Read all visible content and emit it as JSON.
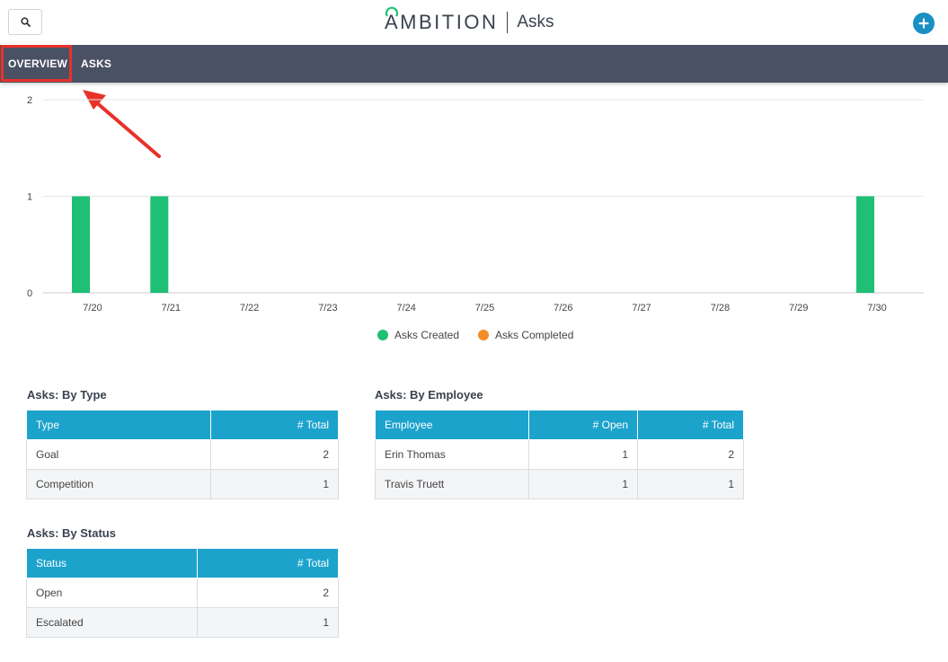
{
  "header": {
    "brand": "AMBITION",
    "page_title": "Asks",
    "search_icon": "search-icon",
    "add_icon": "plus-icon",
    "accent_color": "#1a8fc4"
  },
  "nav": {
    "tabs": [
      {
        "label": "OVERVIEW",
        "active": true
      },
      {
        "label": "ASKS",
        "active": false
      }
    ],
    "background": "#4a5164",
    "highlight_color": "#e8312a"
  },
  "chart_data": {
    "type": "bar",
    "categories": [
      "7/20",
      "7/21",
      "7/22",
      "7/23",
      "7/24",
      "7/25",
      "7/26",
      "7/27",
      "7/28",
      "7/29",
      "7/30"
    ],
    "series": [
      {
        "name": "Asks Created",
        "color": "#1fbf75",
        "values": [
          1,
          1,
          0,
          0,
          0,
          0,
          0,
          0,
          0,
          0,
          1
        ]
      },
      {
        "name": "Asks Completed",
        "color": "#f28c28",
        "values": [
          0,
          0,
          0,
          0,
          0,
          0,
          0,
          0,
          0,
          0,
          0
        ]
      }
    ],
    "y_ticks": [
      "0",
      "1",
      "2"
    ],
    "ylim": [
      0,
      2
    ],
    "grid": true,
    "legend_position": "bottom-center"
  },
  "by_type": {
    "title": "Asks: By Type",
    "headers": [
      "Type",
      "# Total"
    ],
    "rows": [
      [
        "Goal",
        "2"
      ],
      [
        "Competition",
        "1"
      ]
    ]
  },
  "by_employee": {
    "title": "Asks: By Employee",
    "headers": [
      "Employee",
      "# Open",
      "# Total"
    ],
    "rows": [
      [
        "Erin Thomas",
        "1",
        "2"
      ],
      [
        "Travis Truett",
        "1",
        "1"
      ]
    ]
  },
  "by_status": {
    "title": "Asks: By Status",
    "headers": [
      "Status",
      "# Total"
    ],
    "rows": [
      [
        "Open",
        "2"
      ],
      [
        "Escalated",
        "1"
      ]
    ]
  }
}
